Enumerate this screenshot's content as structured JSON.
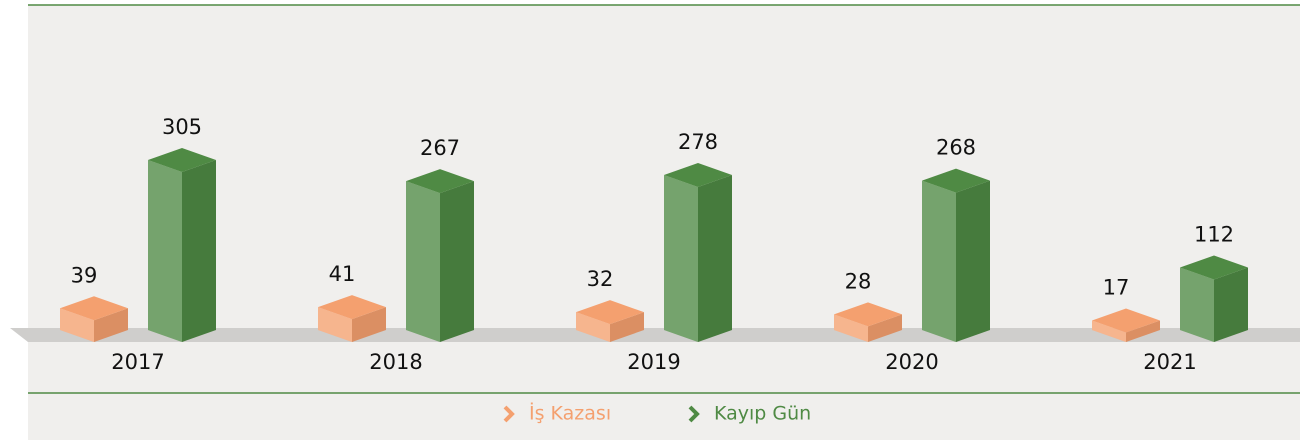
{
  "chart_data": {
    "type": "bar3d",
    "categories": [
      "2017",
      "2018",
      "2019",
      "2020",
      "2021"
    ],
    "series": [
      {
        "name": "İş Kazası",
        "color": "#f4a06f",
        "values": [
          39,
          41,
          32,
          28,
          17
        ]
      },
      {
        "name": "Kayıp Gün",
        "color": "#4f8a44",
        "values": [
          305,
          267,
          278,
          268,
          112
        ]
      }
    ],
    "ylim": [
      0,
      330
    ]
  }
}
